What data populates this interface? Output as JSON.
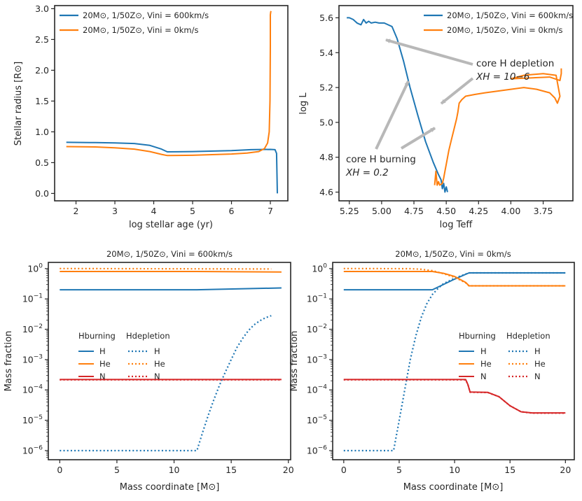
{
  "colors": {
    "blue": "#1f77b4",
    "orange": "#ff7f0e",
    "red": "#d62728",
    "arrow": "#b8b8b8",
    "axis": "#262626"
  },
  "legend": {
    "rot": "20M⊙, 1/50Z⊙, Vini = 600km/s",
    "nonrot": "20M⊙, 1/50Z⊙, Vini = 0km/s",
    "h_burning": "Hburning",
    "h_depletion": "Hdepletion",
    "species": [
      "H",
      "He",
      "N"
    ]
  },
  "panels": {
    "radius": {
      "xlabel": "log stellar age (yr)",
      "ylabel": "Stellar radius [R⊙]"
    },
    "hrd": {
      "xlabel": "log Teff",
      "ylabel": "log L",
      "ann_depletion_1": "core H depletion",
      "ann_depletion_2": "XH = 10−6",
      "ann_burning_1": "core H burning",
      "ann_burning_2": "XH = 0.2"
    },
    "abund_rot": {
      "title": "20M⊙, 1/50Z⊙, Vini = 600km/s",
      "xlabel": "Mass coordinate [M⊙]",
      "ylabel": "Mass fraction"
    },
    "abund_nonrot": {
      "title": "20M⊙, 1/50Z⊙, Vini = 0km/s",
      "xlabel": "Mass coordinate [M⊙]",
      "ylabel": "Mass fraction"
    }
  },
  "chart_data": [
    {
      "type": "line",
      "xlabel": "log stellar age (yr)",
      "ylabel": "Stellar radius [R⊙]",
      "xlim": [
        1.45,
        7.45
      ],
      "ylim": [
        -0.12,
        3.05
      ],
      "xticks": [
        2,
        3,
        4,
        5,
        6,
        7
      ],
      "yticks": [
        0.0,
        0.5,
        1.0,
        1.5,
        2.0,
        2.5,
        3.0
      ],
      "series": [
        {
          "name": "20M⊙, 1/50Z⊙, Vini = 600km/s",
          "color": "blue",
          "x": [
            1.75,
            2.5,
            3.0,
            3.5,
            3.9,
            4.2,
            4.35,
            5.0,
            6.0,
            6.5,
            7.0,
            7.12,
            7.16,
            7.17,
            7.18
          ],
          "y": [
            0.83,
            0.825,
            0.82,
            0.81,
            0.78,
            0.72,
            0.675,
            0.68,
            0.695,
            0.71,
            0.715,
            0.71,
            0.65,
            0.3,
            0.0
          ]
        },
        {
          "name": "20M⊙, 1/50Z⊙, Vini = 0km/s",
          "color": "orange",
          "x": [
            1.75,
            2.5,
            3.0,
            3.5,
            3.9,
            4.2,
            4.35,
            5.0,
            6.0,
            6.4,
            6.7,
            6.85,
            6.93,
            6.97,
            6.99,
            7.0,
            7.0,
            7.01,
            7.02
          ],
          "y": [
            0.76,
            0.755,
            0.74,
            0.72,
            0.68,
            0.635,
            0.615,
            0.62,
            0.64,
            0.655,
            0.68,
            0.73,
            0.82,
            1.0,
            1.5,
            2.4,
            2.9,
            2.95,
            2.96
          ]
        }
      ]
    },
    {
      "type": "line",
      "xlabel": "log Teff",
      "ylabel": "log L",
      "xlim": [
        5.33,
        3.52
      ],
      "xinverted": true,
      "ylim": [
        4.55,
        5.67
      ],
      "xticks": [
        5.25,
        5.0,
        4.75,
        4.5,
        4.25,
        4.0,
        3.75
      ],
      "yticks": [
        4.6,
        4.8,
        5.0,
        5.2,
        5.4,
        5.6
      ],
      "series": [
        {
          "name": "20M⊙, 1/50Z⊙, Vini = 600km/s",
          "color": "blue",
          "x": [
            5.27,
            5.25,
            5.22,
            5.19,
            5.16,
            5.14,
            5.12,
            5.1,
            5.08,
            5.05,
            5.02,
            4.98,
            4.95,
            4.92,
            4.88,
            4.83,
            4.78,
            4.72,
            4.66,
            4.6,
            4.56,
            4.54,
            4.53,
            4.52,
            4.51,
            4.5,
            4.49
          ],
          "y": [
            5.6,
            5.6,
            5.59,
            5.57,
            5.56,
            5.59,
            5.57,
            5.58,
            5.57,
            5.575,
            5.57,
            5.57,
            5.56,
            5.55,
            5.48,
            5.35,
            5.2,
            5.04,
            4.89,
            4.77,
            4.7,
            4.67,
            4.62,
            4.65,
            4.6,
            4.63,
            4.6
          ]
        },
        {
          "name": "20M⊙, 1/50Z⊙, Vini = 0km/s",
          "color": "orange",
          "x": [
            4.59,
            4.58,
            4.57,
            4.56,
            4.55,
            4.53,
            4.52,
            4.51,
            4.5,
            4.48,
            4.46,
            4.44,
            4.42,
            4.41,
            4.4,
            4.38,
            4.35,
            4.28,
            4.2,
            4.1,
            4.0,
            3.9,
            3.8,
            3.7,
            3.66,
            3.64,
            3.62,
            3.65,
            3.75,
            3.9,
            4.0,
            3.7,
            3.62,
            3.61,
            3.61
          ],
          "y": [
            4.64,
            4.72,
            4.64,
            4.66,
            4.64,
            4.65,
            4.68,
            4.72,
            4.76,
            4.84,
            4.9,
            4.96,
            5.02,
            5.06,
            5.11,
            5.13,
            5.15,
            5.16,
            5.17,
            5.18,
            5.19,
            5.2,
            5.19,
            5.17,
            5.14,
            5.11,
            5.15,
            5.27,
            5.28,
            5.27,
            5.25,
            5.26,
            5.24,
            5.28,
            5.31
          ]
        }
      ]
    },
    {
      "type": "line",
      "title": "20M⊙, 1/50Z⊙, Vini = 600km/s",
      "xlabel": "Mass coordinate [M⊙]",
      "ylabel": "Mass fraction",
      "yscale": "log",
      "xlim": [
        -1,
        20.2
      ],
      "ylim": [
        5e-07,
        1.6
      ],
      "xticks": [
        0,
        5,
        10,
        15,
        20
      ],
      "yticks": [
        1e-06,
        1e-05,
        0.0001,
        0.001,
        0.01,
        0.1,
        1
      ],
      "series": [
        {
          "name": "H (Hburning)",
          "color": "blue",
          "style": "solid",
          "x": [
            0,
            12,
            19.4
          ],
          "y": [
            0.2,
            0.2,
            0.23
          ]
        },
        {
          "name": "He (Hburning)",
          "color": "orange",
          "style": "solid",
          "x": [
            0,
            12,
            19.4
          ],
          "y": [
            0.8,
            0.8,
            0.77
          ]
        },
        {
          "name": "N (Hburning)",
          "color": "red",
          "style": "solid",
          "x": [
            0,
            19.4
          ],
          "y": [
            0.00022,
            0.00022
          ]
        },
        {
          "name": "H (Hdepletion)",
          "color": "blue",
          "style": "dotted",
          "x": [
            0,
            12.0,
            12.5,
            13.0,
            13.5,
            14.0,
            14.5,
            15.0,
            15.5,
            16.0,
            16.5,
            17.0,
            17.5,
            18.0,
            18.5
          ],
          "y": [
            1e-06,
            1e-06,
            4e-06,
            1.5e-05,
            5e-05,
            0.00015,
            0.0004,
            0.001,
            0.0025,
            0.005,
            0.009,
            0.014,
            0.019,
            0.024,
            0.028
          ]
        },
        {
          "name": "He (Hdepletion)",
          "color": "orange",
          "style": "dotted",
          "x": [
            0,
            18.5
          ],
          "y": [
            1.0,
            0.97
          ]
        },
        {
          "name": "N (Hdepletion)",
          "color": "red",
          "style": "dotted",
          "x": [
            0,
            19.4
          ],
          "y": [
            0.000215,
            0.000215
          ]
        }
      ]
    },
    {
      "type": "line",
      "title": "20M⊙, 1/50Z⊙, Vini = 0km/s",
      "xlabel": "Mass coordinate [M⊙]",
      "ylabel": "Mass fraction",
      "yscale": "log",
      "xlim": [
        -1,
        20.8
      ],
      "ylim": [
        5e-07,
        1.6
      ],
      "xticks": [
        0,
        5,
        10,
        15,
        20
      ],
      "yticks": [
        1e-06,
        1e-05,
        0.0001,
        0.001,
        0.01,
        0.1,
        1
      ],
      "series": [
        {
          "name": "H (Hburning)",
          "color": "blue",
          "style": "solid",
          "x": [
            0,
            8.0,
            9.0,
            10.0,
            11.0,
            11.3,
            20
          ],
          "y": [
            0.2,
            0.2,
            0.3,
            0.45,
            0.65,
            0.72,
            0.72
          ]
        },
        {
          "name": "He (Hburning)",
          "color": "orange",
          "style": "solid",
          "x": [
            0,
            8.0,
            9.0,
            10.0,
            11.0,
            11.3,
            20
          ],
          "y": [
            0.8,
            0.8,
            0.7,
            0.55,
            0.35,
            0.27,
            0.27
          ]
        },
        {
          "name": "N (Hburning)",
          "color": "red",
          "style": "solid",
          "x": [
            0,
            11.0,
            11.2,
            11.4,
            13.0,
            14.0,
            15.0,
            16.0,
            17.0,
            20
          ],
          "y": [
            0.00022,
            0.00022,
            0.00015,
            8.5e-05,
            8.3e-05,
            6e-05,
            3e-05,
            1.9e-05,
            1.75e-05,
            1.75e-05
          ]
        },
        {
          "name": "H (Hdepletion)",
          "color": "blue",
          "style": "dotted",
          "x": [
            0,
            4.5,
            5.0,
            5.5,
            6.0,
            6.5,
            7.0,
            7.5,
            8.0,
            8.5,
            9.0,
            10.0,
            11.0,
            11.3,
            20
          ],
          "y": [
            1e-06,
            1e-06,
            1e-05,
            0.0001,
            0.001,
            0.006,
            0.025,
            0.07,
            0.14,
            0.22,
            0.32,
            0.48,
            0.66,
            0.72,
            0.72
          ]
        },
        {
          "name": "He (Hdepletion)",
          "color": "orange",
          "style": "dotted",
          "x": [
            0,
            6.0,
            7.0,
            8.0,
            9.0,
            10.0,
            11.0,
            11.3,
            20
          ],
          "y": [
            1.0,
            0.99,
            0.95,
            0.85,
            0.68,
            0.52,
            0.34,
            0.27,
            0.27
          ]
        },
        {
          "name": "N (Hdepletion)",
          "color": "red",
          "style": "dotted",
          "x": [
            0,
            11.0,
            11.2,
            11.4,
            13.0,
            14.0,
            15.0,
            16.0,
            17.0,
            20
          ],
          "y": [
            0.000215,
            0.000215,
            0.00015,
            8.4e-05,
            8.2e-05,
            6e-05,
            3e-05,
            1.9e-05,
            1.72e-05,
            1.72e-05
          ]
        }
      ]
    }
  ]
}
